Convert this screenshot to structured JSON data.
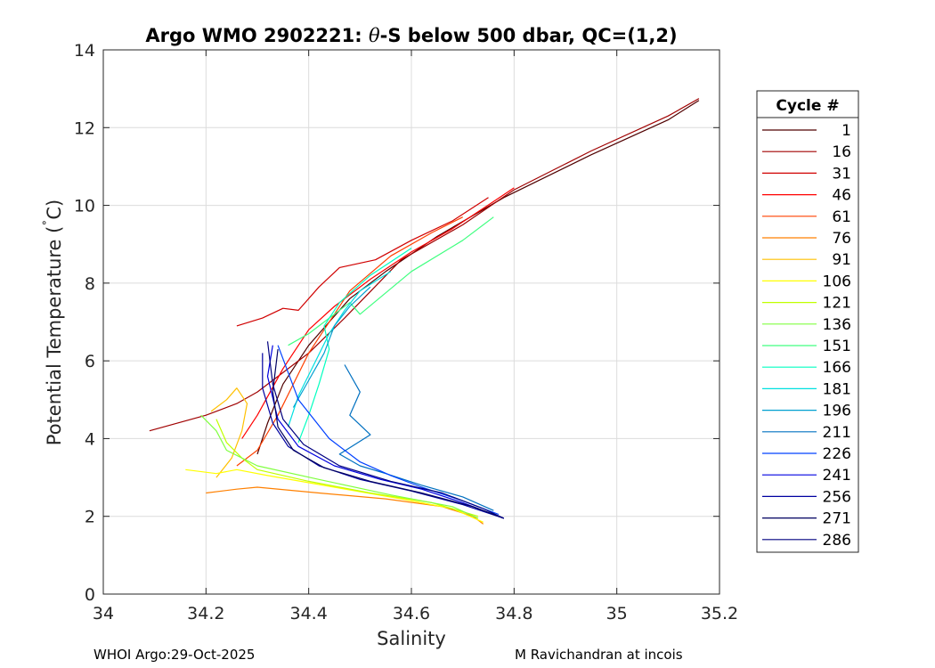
{
  "chart_data": {
    "type": "line",
    "title": "Argo WMO 2902221: θ-S below 500 dbar,  QC=(1,2)",
    "title_prefix": "Argo WMO 2902221: ",
    "title_theta": "θ",
    "title_suffix": "-S below 500 dbar,  QC=(1,2)",
    "xlabel": "Salinity",
    "ylabel": "Potential Temperature (˚C)",
    "ylabel_main": "Potential Temperature (",
    "ylabel_deg": "˚",
    "ylabel_unit": "C)",
    "xlim": [
      34,
      35.2
    ],
    "ylim": [
      0,
      14
    ],
    "xticks": [
      34,
      34.2,
      34.4,
      34.6,
      34.8,
      35,
      35.2
    ],
    "xtick_labels": [
      "34",
      "34.2",
      "34.4",
      "34.6",
      "34.8",
      "35",
      "35.2"
    ],
    "yticks": [
      0,
      2,
      4,
      6,
      8,
      10,
      12,
      14
    ],
    "ytick_labels": [
      "0",
      "2",
      "4",
      "6",
      "8",
      "10",
      "12",
      "14"
    ],
    "grid": true,
    "legend_title": "Cycle #",
    "legend_placement": "right, outside plot",
    "series": [
      {
        "name": "1",
        "color": "#500000",
        "salinity": [
          34.3,
          34.32,
          34.35,
          34.4,
          34.44,
          34.48,
          34.55,
          34.65,
          34.78,
          34.95,
          35.1,
          35.16
        ],
        "theta": [
          3.6,
          4.4,
          5.4,
          6.4,
          7.0,
          7.6,
          8.3,
          9.2,
          10.2,
          11.3,
          12.2,
          12.7
        ]
      },
      {
        "name": "16",
        "color": "#a00000",
        "salinity": [
          34.09,
          34.2,
          34.26,
          34.3,
          34.4,
          34.47,
          34.58,
          34.7,
          34.8,
          34.95,
          35.1,
          35.16
        ],
        "theta": [
          4.2,
          4.6,
          4.9,
          5.2,
          6.2,
          7.1,
          8.6,
          9.5,
          10.4,
          11.4,
          12.3,
          12.75
        ]
      },
      {
        "name": "31",
        "color": "#d00000",
        "salinity": [
          34.26,
          34.31,
          34.35,
          34.38,
          34.42,
          34.46,
          34.53,
          34.6,
          34.68,
          34.75
        ],
        "theta": [
          6.9,
          7.1,
          7.35,
          7.3,
          7.9,
          8.4,
          8.6,
          9.1,
          9.6,
          10.2
        ]
      },
      {
        "name": "46",
        "color": "#ff0000",
        "salinity": [
          34.27,
          34.3,
          34.35,
          34.4,
          34.45,
          34.52,
          34.6,
          34.68,
          34.76,
          34.8
        ],
        "theta": [
          4.0,
          4.6,
          5.8,
          6.8,
          7.4,
          8.1,
          8.8,
          9.4,
          10.1,
          10.45
        ]
      },
      {
        "name": "61",
        "color": "#ff4000",
        "salinity": [
          34.26,
          34.3,
          34.34,
          34.4,
          34.48,
          34.56,
          34.64,
          34.7
        ],
        "theta": [
          3.3,
          3.7,
          4.6,
          6.2,
          7.8,
          8.7,
          9.3,
          9.7
        ]
      },
      {
        "name": "76",
        "color": "#ff8000",
        "salinity": [
          34.2,
          34.26,
          34.3,
          34.42,
          34.55,
          34.66,
          34.72,
          34.74
        ],
        "theta": [
          2.6,
          2.7,
          2.75,
          2.6,
          2.45,
          2.25,
          2.0,
          1.8
        ]
      },
      {
        "name": "91",
        "color": "#ffc000",
        "salinity": [
          34.22,
          34.25,
          34.27,
          34.28,
          34.26,
          34.24,
          34.21
        ],
        "theta": [
          3.0,
          3.5,
          4.2,
          4.9,
          5.3,
          5.0,
          4.7
        ]
      },
      {
        "name": "106",
        "color": "#ffff00",
        "salinity": [
          34.16,
          34.22,
          34.26,
          34.32,
          34.45,
          34.58,
          34.68,
          34.74
        ],
        "theta": [
          3.2,
          3.1,
          3.2,
          3.05,
          2.75,
          2.45,
          2.2,
          1.85
        ]
      },
      {
        "name": "121",
        "color": "#c0ff00",
        "salinity": [
          34.22,
          34.24,
          34.27,
          34.3,
          34.4,
          34.52,
          34.64,
          34.73
        ],
        "theta": [
          4.5,
          3.9,
          3.5,
          3.2,
          2.9,
          2.6,
          2.35,
          2.0
        ]
      },
      {
        "name": "136",
        "color": "#80ff40",
        "salinity": [
          34.19,
          34.22,
          34.24,
          34.3,
          34.42,
          34.56,
          34.68,
          34.73
        ],
        "theta": [
          4.6,
          4.2,
          3.7,
          3.3,
          2.95,
          2.55,
          2.25,
          1.95
        ]
      },
      {
        "name": "151",
        "color": "#40ff80",
        "salinity": [
          34.36,
          34.4,
          34.42,
          34.45,
          34.48,
          34.5,
          34.6,
          34.7,
          34.76
        ],
        "theta": [
          6.4,
          6.7,
          6.9,
          7.2,
          7.5,
          7.2,
          8.3,
          9.1,
          9.7
        ]
      },
      {
        "name": "166",
        "color": "#00ffc0",
        "salinity": [
          34.38,
          34.4,
          34.42,
          34.44,
          34.43,
          34.46,
          34.52,
          34.6
        ],
        "theta": [
          3.9,
          4.6,
          5.4,
          6.3,
          6.9,
          7.5,
          8.2,
          8.9
        ]
      },
      {
        "name": "181",
        "color": "#00e0e0",
        "salinity": [
          34.36,
          34.38,
          34.41,
          34.44,
          34.47,
          34.5,
          34.56
        ],
        "theta": [
          4.3,
          5.1,
          5.9,
          6.7,
          7.3,
          7.8,
          8.3
        ]
      },
      {
        "name": "196",
        "color": "#00a0d0",
        "salinity": [
          34.37,
          34.4,
          34.43,
          34.45,
          34.48,
          34.52
        ],
        "theta": [
          4.8,
          5.5,
          6.2,
          6.9,
          7.4,
          7.9
        ]
      },
      {
        "name": "211",
        "color": "#0070c0",
        "salinity": [
          34.47,
          34.5,
          34.48,
          34.52,
          34.46,
          34.5,
          34.55,
          34.62,
          34.7,
          34.76
        ],
        "theta": [
          5.9,
          5.2,
          4.6,
          4.1,
          3.6,
          3.3,
          3.1,
          2.8,
          2.5,
          2.15
        ]
      },
      {
        "name": "226",
        "color": "#0040ff",
        "salinity": [
          34.34,
          34.38,
          34.44,
          34.5,
          34.56,
          34.62,
          34.7,
          34.77
        ],
        "theta": [
          6.4,
          5.0,
          4.0,
          3.4,
          3.05,
          2.75,
          2.4,
          2.05
        ]
      },
      {
        "name": "241",
        "color": "#0000e0",
        "salinity": [
          34.33,
          34.32,
          34.34,
          34.38,
          34.45,
          34.54,
          34.62,
          34.7,
          34.78
        ],
        "theta": [
          6.4,
          5.6,
          4.5,
          3.8,
          3.3,
          2.95,
          2.7,
          2.35,
          1.95
        ]
      },
      {
        "name": "256",
        "color": "#0000a0",
        "salinity": [
          34.31,
          34.31,
          34.33,
          34.36,
          34.42,
          34.5,
          34.6,
          34.7,
          34.78
        ],
        "theta": [
          6.2,
          5.3,
          4.4,
          3.8,
          3.3,
          2.95,
          2.65,
          2.3,
          1.95
        ]
      },
      {
        "name": "271",
        "color": "#000060",
        "salinity": [
          34.34,
          34.33,
          34.34,
          34.37,
          34.43,
          34.52,
          34.62,
          34.72,
          34.78
        ],
        "theta": [
          6.3,
          5.2,
          4.3,
          3.7,
          3.25,
          2.9,
          2.6,
          2.25,
          1.95
        ]
      },
      {
        "name": "286",
        "color": "#000080",
        "salinity": [
          34.32,
          34.33,
          34.35,
          34.39,
          34.46,
          34.56,
          34.66,
          34.74,
          34.78
        ],
        "theta": [
          6.5,
          5.4,
          4.5,
          3.85,
          3.3,
          2.9,
          2.6,
          2.2,
          1.95
        ]
      }
    ]
  },
  "footer": {
    "left": "WHOI Argo:29-Oct-2025",
    "right": "M Ravichandran at incois"
  }
}
